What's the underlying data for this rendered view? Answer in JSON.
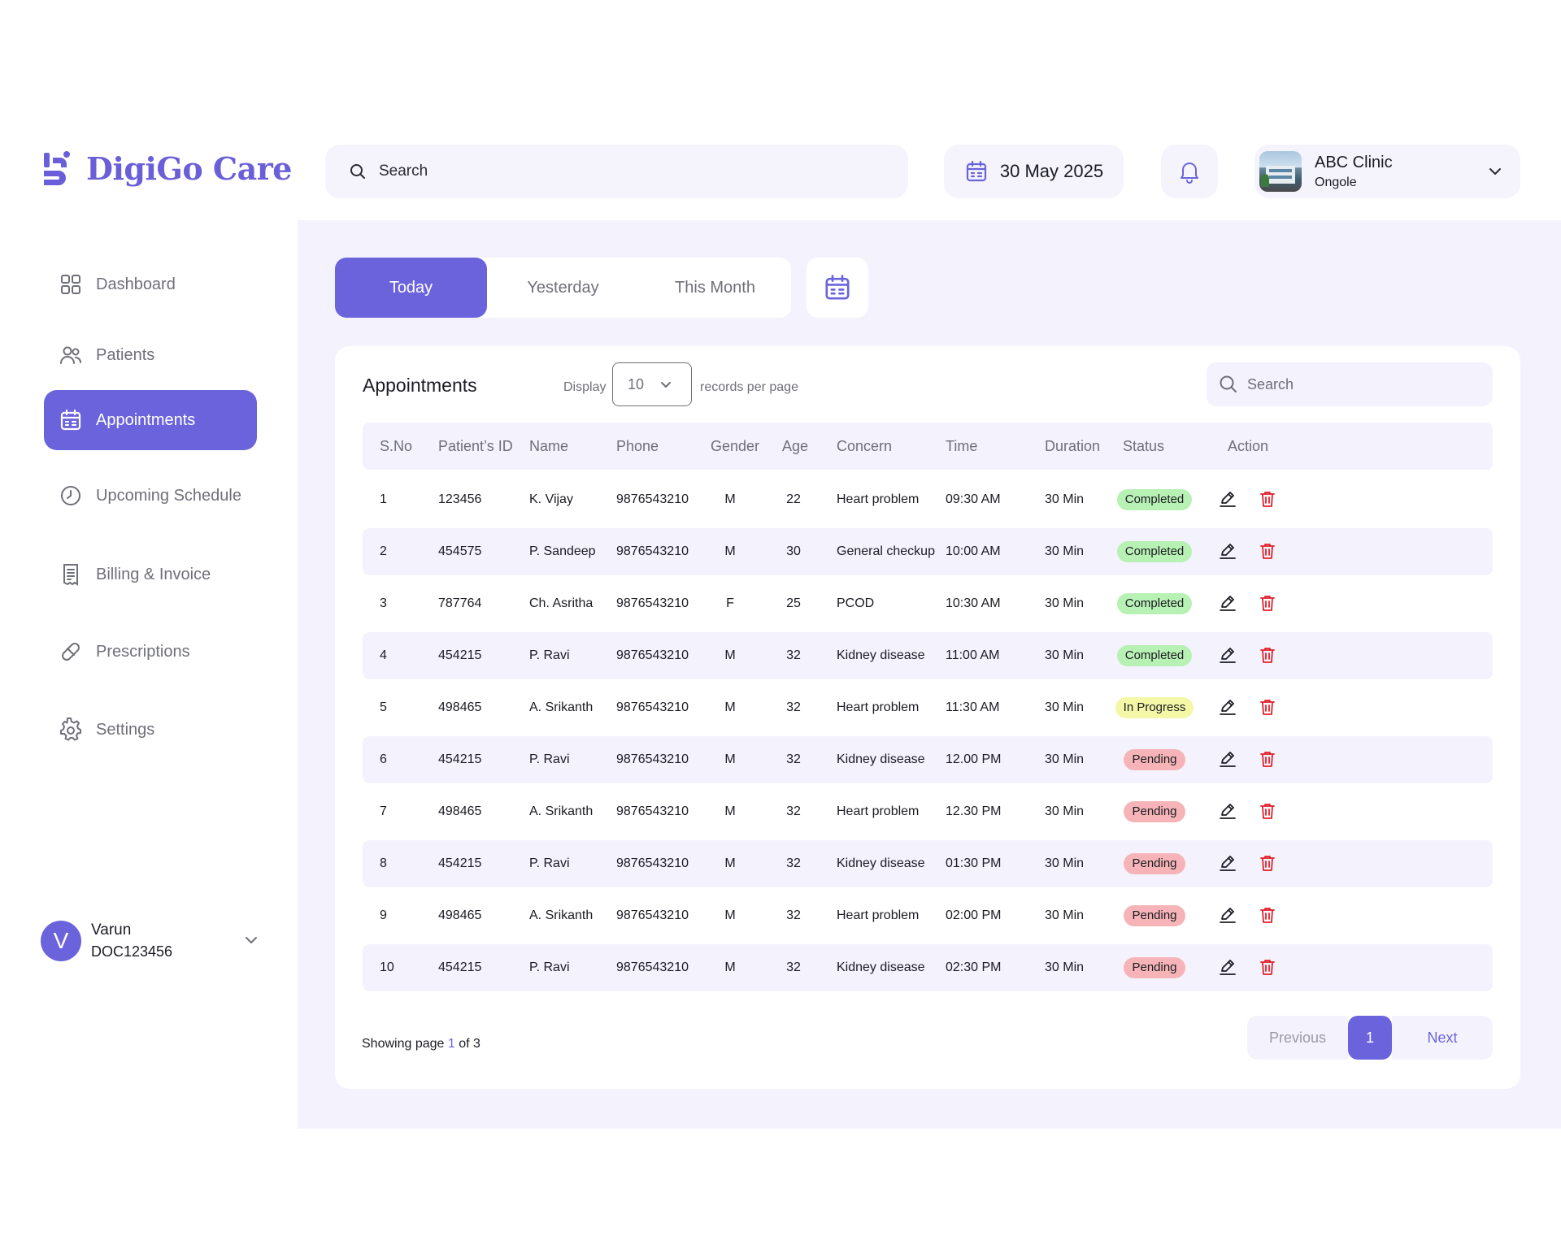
{
  "brand": {
    "name": "DigiGo Care",
    "color": "#6b63dc"
  },
  "header": {
    "search_placeholder": "Search",
    "date": "30 May 2025",
    "clinic": {
      "name": "ABC Clinic",
      "city": "Ongole"
    }
  },
  "sidebar": {
    "items": [
      {
        "label": "Dashboard",
        "icon": "grid-icon",
        "active": false
      },
      {
        "label": "Patients",
        "icon": "users-icon",
        "active": false
      },
      {
        "label": "Appointments",
        "icon": "calendar-icon",
        "active": true
      },
      {
        "label": "Upcoming Schedule",
        "icon": "clock-icon",
        "active": false
      },
      {
        "label": "Billing & Invoice",
        "icon": "receipt-icon",
        "active": false
      },
      {
        "label": "Prescriptions",
        "icon": "pill-icon",
        "active": false
      },
      {
        "label": "Settings",
        "icon": "gear-icon",
        "active": false
      }
    ],
    "user": {
      "initial": "V",
      "name": "Varun",
      "id": "DOC123456"
    }
  },
  "filters": {
    "tabs": [
      "Today",
      "Yesterday",
      "This Month"
    ],
    "active": "Today"
  },
  "appointments": {
    "title": "Appointments",
    "display_label": "Display",
    "page_size": "10",
    "records_label": "records per page",
    "search_placeholder": "Search",
    "columns": [
      "S.No",
      "Patient’s ID",
      "Name",
      "Phone",
      "Gender",
      "Age",
      "Concern",
      "Time",
      "Duration",
      "Status",
      "Action"
    ],
    "rows": [
      {
        "sno": "1",
        "pid": "123456",
        "name": "K. Vijay",
        "phone": "9876543210",
        "gender": "M",
        "age": "22",
        "concern": "Heart problem",
        "time": "09:30 AM",
        "duration": "30 Min",
        "status": "Completed"
      },
      {
        "sno": "2",
        "pid": "454575",
        "name": "P. Sandeep",
        "phone": "9876543210",
        "gender": "M",
        "age": "30",
        "concern": "General checkup",
        "time": "10:00 AM",
        "duration": "30 Min",
        "status": "Completed"
      },
      {
        "sno": "3",
        "pid": "787764",
        "name": "Ch. Asritha",
        "phone": "9876543210",
        "gender": "F",
        "age": "25",
        "concern": "PCOD",
        "time": "10:30 AM",
        "duration": "30 Min",
        "status": "Completed"
      },
      {
        "sno": "4",
        "pid": "454215",
        "name": "P. Ravi",
        "phone": "9876543210",
        "gender": "M",
        "age": "32",
        "concern": "Kidney disease",
        "time": "11:00 AM",
        "duration": "30 Min",
        "status": "Completed"
      },
      {
        "sno": "5",
        "pid": "498465",
        "name": "A. Srikanth",
        "phone": "9876543210",
        "gender": "M",
        "age": "32",
        "concern": "Heart problem",
        "time": "11:30 AM",
        "duration": "30 Min",
        "status": "In Progress"
      },
      {
        "sno": "6",
        "pid": "454215",
        "name": "P. Ravi",
        "phone": "9876543210",
        "gender": "M",
        "age": "32",
        "concern": "Kidney disease",
        "time": "12.00 PM",
        "duration": "30 Min",
        "status": "Pending"
      },
      {
        "sno": "7",
        "pid": "498465",
        "name": "A. Srikanth",
        "phone": "9876543210",
        "gender": "M",
        "age": "32",
        "concern": "Heart problem",
        "time": "12.30 PM",
        "duration": "30 Min",
        "status": "Pending"
      },
      {
        "sno": "8",
        "pid": "454215",
        "name": "P. Ravi",
        "phone": "9876543210",
        "gender": "M",
        "age": "32",
        "concern": "Kidney disease",
        "time": "01:30 PM",
        "duration": "30 Min",
        "status": "Pending"
      },
      {
        "sno": "9",
        "pid": "498465",
        "name": "A. Srikanth",
        "phone": "9876543210",
        "gender": "M",
        "age": "32",
        "concern": "Heart problem",
        "time": "02:00 PM",
        "duration": "30 Min",
        "status": "Pending"
      },
      {
        "sno": "10",
        "pid": "454215",
        "name": "P. Ravi",
        "phone": "9876543210",
        "gender": "M",
        "age": "32",
        "concern": "Kidney disease",
        "time": "02:30 PM",
        "duration": "30 Min",
        "status": "Pending"
      }
    ],
    "status_colors": {
      "Completed": "#b8f1b4",
      "In Progress": "#f4f8a6",
      "Pending": "#f6b4b8"
    },
    "action_icons": [
      "edit-icon",
      "trash-icon"
    ]
  },
  "pagination": {
    "showing_prefix": "Showing page",
    "current": "1",
    "of_label": "of",
    "total": "3",
    "previous": "Previous",
    "next": "Next"
  }
}
